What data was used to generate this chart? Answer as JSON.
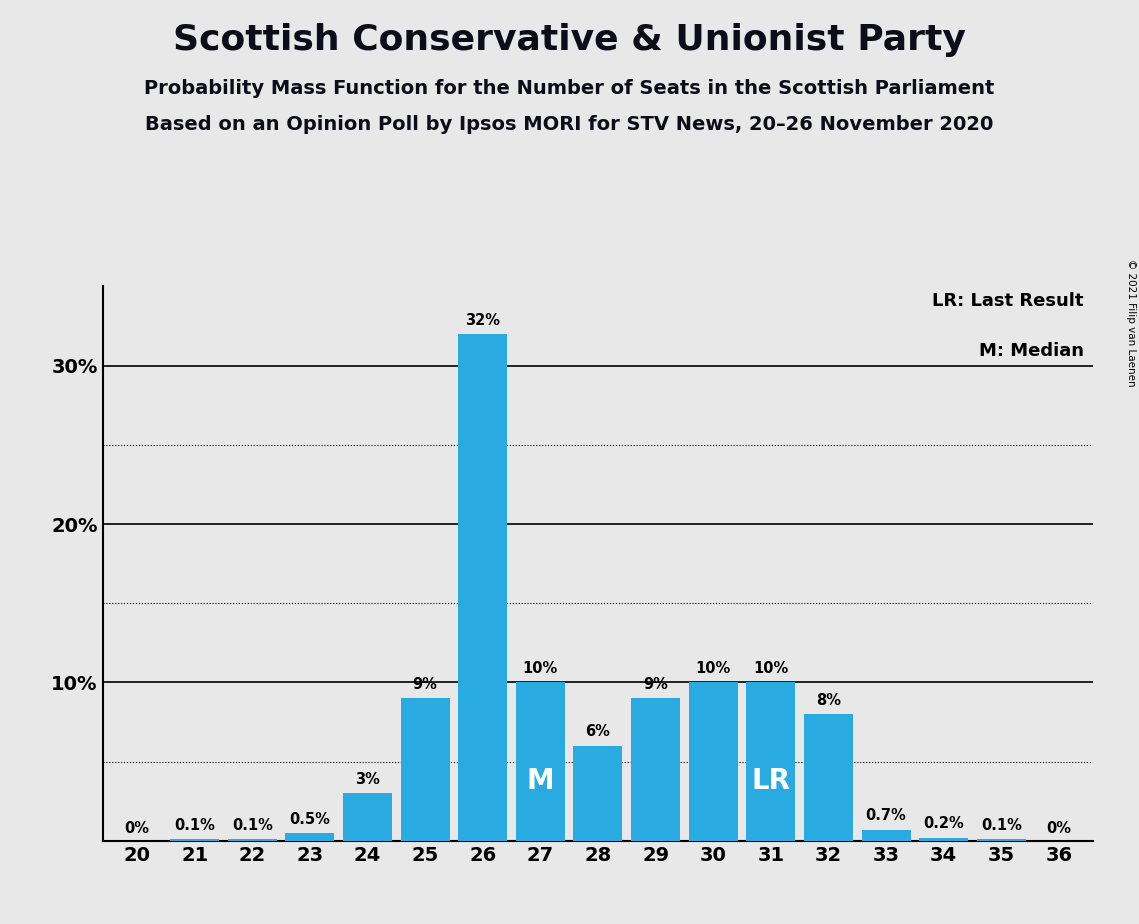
{
  "title": "Scottish Conservative & Unionist Party",
  "subtitle1": "Probability Mass Function for the Number of Seats in the Scottish Parliament",
  "subtitle2": "Based on an Opinion Poll by Ipsos MORI for STV News, 20–26 November 2020",
  "copyright": "© 2021 Filip van Laenen",
  "legend_lr": "LR: Last Result",
  "legend_m": "M: Median",
  "seats": [
    20,
    21,
    22,
    23,
    24,
    25,
    26,
    27,
    28,
    29,
    30,
    31,
    32,
    33,
    34,
    35,
    36
  ],
  "values": [
    0.0,
    0.1,
    0.1,
    0.5,
    3.0,
    9.0,
    32.0,
    10.0,
    6.0,
    9.0,
    10.0,
    10.0,
    8.0,
    0.7,
    0.2,
    0.1,
    0.0
  ],
  "labels": [
    "0%",
    "0.1%",
    "0.1%",
    "0.5%",
    "3%",
    "9%",
    "32%",
    "10%",
    "6%",
    "9%",
    "10%",
    "10%",
    "8%",
    "0.7%",
    "0.2%",
    "0.1%",
    "0%"
  ],
  "bar_color": "#29ABE2",
  "median_seat": 27,
  "lr_seat": 31,
  "background_color": "#E8E8E8",
  "solid_yticks": [
    10,
    20,
    30
  ],
  "dotted_yticks": [
    5,
    15,
    25
  ],
  "ymax": 35
}
